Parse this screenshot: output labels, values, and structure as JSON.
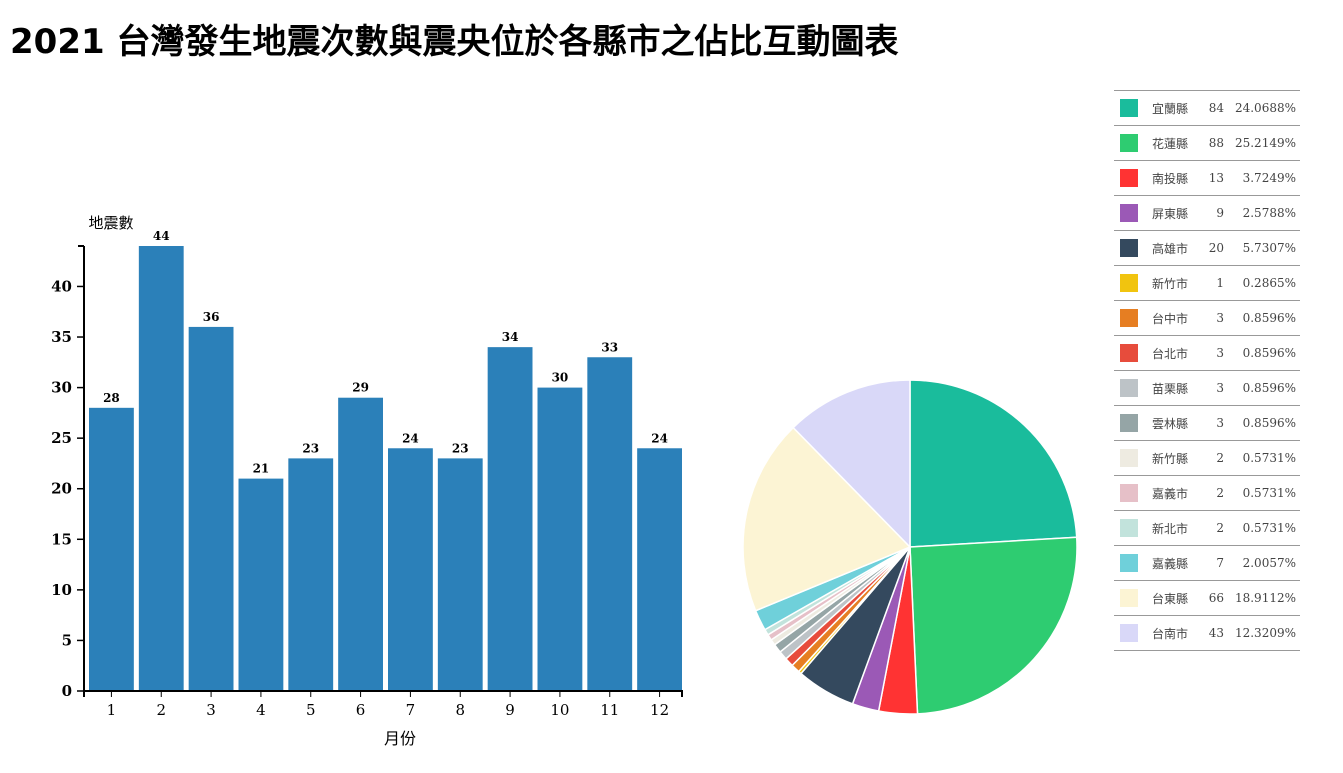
{
  "title": "2021 台灣發生地震次數與震央位於各縣市之佔比互動圖表",
  "chart_data": [
    {
      "type": "bar",
      "ylabel": "地震數",
      "xlabel": "月份",
      "categories": [
        "1",
        "2",
        "3",
        "4",
        "5",
        "6",
        "7",
        "8",
        "9",
        "10",
        "11",
        "12"
      ],
      "values": [
        28,
        44,
        36,
        21,
        23,
        29,
        24,
        23,
        34,
        30,
        33,
        24
      ],
      "yticks": [
        0,
        5,
        10,
        15,
        20,
        25,
        30,
        35,
        40
      ],
      "ylim": [
        0,
        44
      ],
      "color": "#2b80b9",
      "data_labels": true,
      "grid": false
    },
    {
      "type": "pie",
      "legend_position": "right",
      "slices": [
        {
          "name": "宜蘭縣",
          "value": 84,
          "percent": "24.0688%",
          "color": "#1abc9c"
        },
        {
          "name": "花蓮縣",
          "value": 88,
          "percent": "25.2149%",
          "color": "#2ecc71"
        },
        {
          "name": "南投縣",
          "value": 13,
          "percent": "3.7249%",
          "color": "#ff3333"
        },
        {
          "name": "屏東縣",
          "value": 9,
          "percent": "2.5788%",
          "color": "#9b59b6"
        },
        {
          "name": "高雄市",
          "value": 20,
          "percent": "5.7307%",
          "color": "#34495e"
        },
        {
          "name": "新竹市",
          "value": 1,
          "percent": "0.2865%",
          "color": "#f1c40f"
        },
        {
          "name": "台中市",
          "value": 3,
          "percent": "0.8596%",
          "color": "#e67e22"
        },
        {
          "name": "台北市",
          "value": 3,
          "percent": "0.8596%",
          "color": "#e74c3c"
        },
        {
          "name": "苗栗縣",
          "value": 3,
          "percent": "0.8596%",
          "color": "#bdc3c7"
        },
        {
          "name": "雲林縣",
          "value": 3,
          "percent": "0.8596%",
          "color": "#95a5a6"
        },
        {
          "name": "新竹縣",
          "value": 2,
          "percent": "0.5731%",
          "color": "#eeebe1"
        },
        {
          "name": "嘉義市",
          "value": 2,
          "percent": "0.5731%",
          "color": "#e6c0c8"
        },
        {
          "name": "新北市",
          "value": 2,
          "percent": "0.5731%",
          "color": "#c2e3dc"
        },
        {
          "name": "嘉義縣",
          "value": 7,
          "percent": "2.0057%",
          "color": "#6fd0da"
        },
        {
          "name": "台東縣",
          "value": 66,
          "percent": "18.9112%",
          "color": "#fcf4d4"
        },
        {
          "name": "台南市",
          "value": 43,
          "percent": "12.3209%",
          "color": "#d9d8f8"
        }
      ]
    }
  ]
}
